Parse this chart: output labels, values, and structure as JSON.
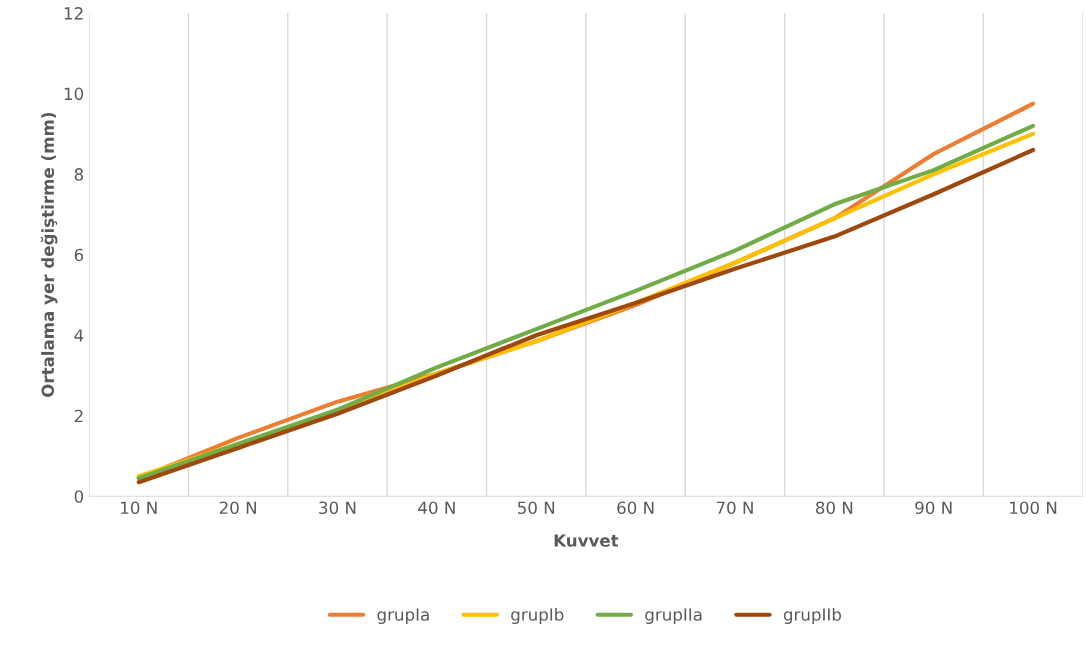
{
  "chart_data": {
    "type": "line",
    "xlabel": "Kuvvet",
    "ylabel": "Ortalama yer değiştirme (mm)",
    "categories": [
      "10 N",
      "20 N",
      "30 N",
      "40 N",
      "50 N",
      "60 N",
      "70 N",
      "80 N",
      "90 N",
      "100 N"
    ],
    "series": [
      {
        "name": "grupIa",
        "color": "#ed7d31",
        "values": [
          0.45,
          1.45,
          2.35,
          3.05,
          3.85,
          4.75,
          5.8,
          6.9,
          8.5,
          9.75
        ]
      },
      {
        "name": "grupIb",
        "color": "#ffc000",
        "values": [
          0.5,
          1.3,
          2.1,
          3.05,
          3.85,
          4.8,
          5.8,
          6.9,
          8.0,
          9.0
        ]
      },
      {
        "name": "grupIIa",
        "color": "#70ad47",
        "values": [
          0.45,
          1.3,
          2.15,
          3.2,
          4.15,
          5.1,
          6.1,
          7.25,
          8.1,
          9.2
        ]
      },
      {
        "name": "grupIIb",
        "color": "#9e480e",
        "values": [
          0.35,
          1.2,
          2.05,
          3.0,
          4.0,
          4.8,
          5.65,
          6.45,
          7.5,
          8.6
        ]
      }
    ],
    "ylim": [
      0,
      12
    ],
    "yticks": [
      0,
      2,
      4,
      6,
      8,
      10,
      12
    ],
    "grid": "x",
    "legend": "bottom",
    "marker": "none",
    "line_style": "solid"
  }
}
